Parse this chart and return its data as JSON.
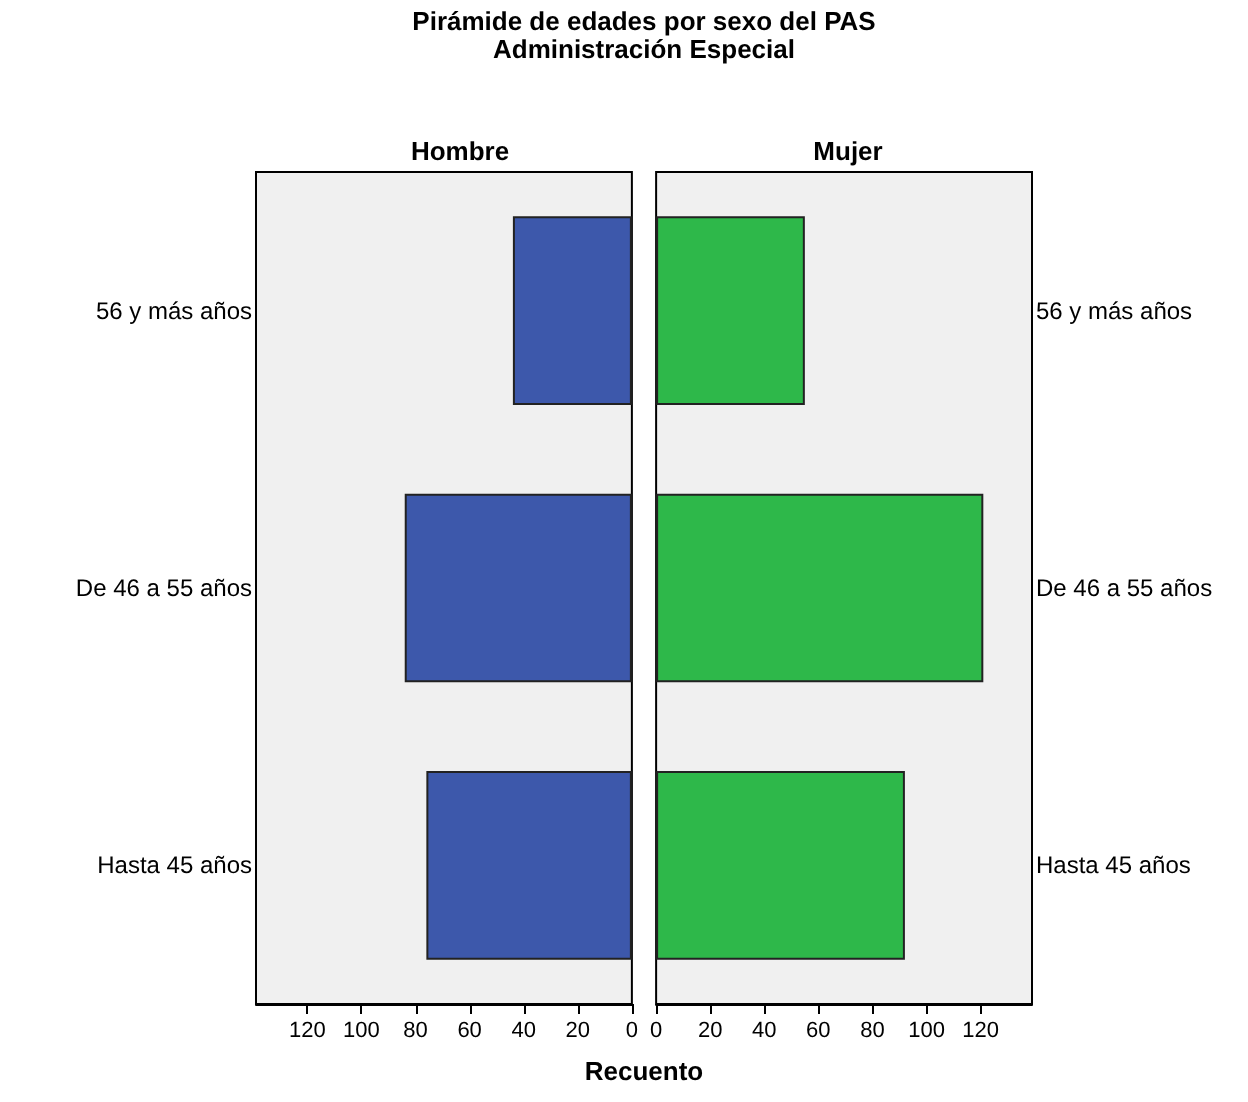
{
  "chart_data": [
    {
      "type": "bar",
      "orientation": "horizontal",
      "title": "Pirámide de edades por sexo del PAS\nAdministración Especial",
      "xlabel": "Recuento",
      "categories": [
        "56 y más años",
        "De 46 a 55 años",
        "Hasta 45 años"
      ],
      "series": [
        {
          "name": "Hombre",
          "color": "#3d58ab",
          "values": [
            44,
            84,
            76
          ]
        }
      ],
      "xlim": [
        139,
        0
      ],
      "xticks": [
        120,
        100,
        80,
        60,
        40,
        20,
        0
      ],
      "grid": false
    },
    {
      "type": "bar",
      "orientation": "horizontal",
      "categories": [
        "56 y más años",
        "De 46 a 55 años",
        "Hasta 45 años"
      ],
      "series": [
        {
          "name": "Mujer",
          "color": "#2eb84a",
          "values": [
            55,
            121,
            92
          ]
        }
      ],
      "xlim": [
        0,
        139
      ],
      "xticks": [
        0,
        20,
        40,
        60,
        80,
        100,
        120
      ],
      "grid": false
    }
  ]
}
